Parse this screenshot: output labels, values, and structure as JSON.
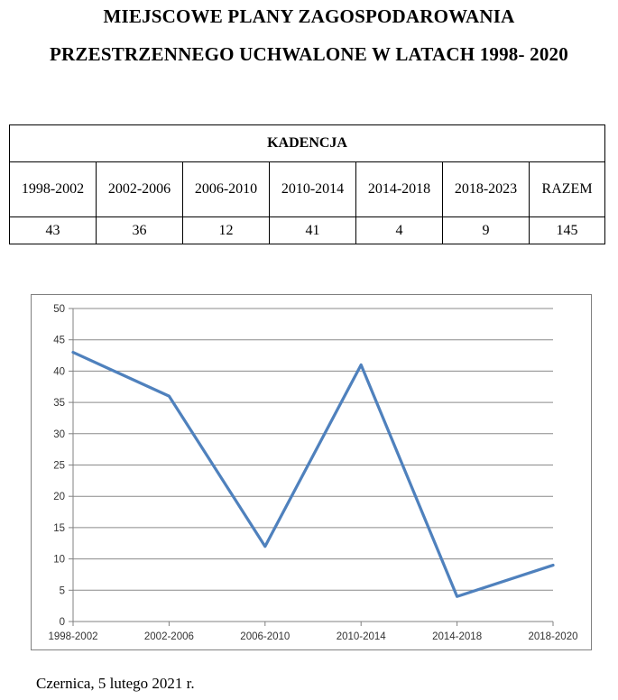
{
  "title": {
    "line1": "MIEJSCOWE PLANY ZAGOSPODAROWANIA",
    "line2": "PRZESTRZENNEGO UCHWALONE W LATACH 1998- 2020"
  },
  "table": {
    "header": "KADENCJA",
    "periods": [
      "1998-2002",
      "2002-2006",
      "2006-2010",
      "2010-2014",
      "2014-2018",
      "2018-2023",
      "RAZEM"
    ],
    "values": [
      "43",
      "36",
      "12",
      "41",
      "4",
      "9",
      "145"
    ]
  },
  "chart_data": {
    "type": "line",
    "categories": [
      "1998-2002",
      "2002-2006",
      "2006-2010",
      "2010-2014",
      "2014-2018",
      "2018-2020"
    ],
    "values": [
      43,
      36,
      12,
      41,
      4,
      9
    ],
    "title": "",
    "xlabel": "",
    "ylabel": "",
    "ylim": [
      0,
      50
    ],
    "ytick_step": 5,
    "grid": true,
    "legend_position": "none",
    "line_color": "#4F81BD",
    "axis_color": "#808080",
    "gridline_color": "#8A8A8A",
    "label_color": "#333333"
  },
  "footer": {
    "text": "Czernica, 5 lutego 2021 r."
  }
}
